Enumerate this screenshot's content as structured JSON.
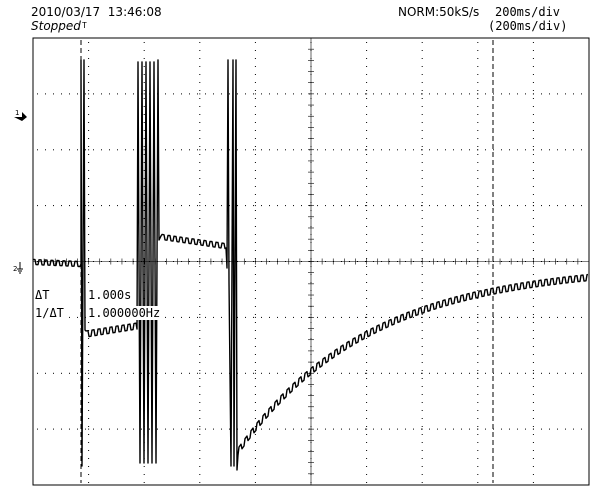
{
  "header": {
    "datetime": "2010/03/17  13:46:08",
    "status": "Stopped",
    "trigger_marker": "T",
    "acquisition_mode": "NORM:50kS/s",
    "time_div": "200ms/div",
    "zoom_time_div": "(200ms/div)"
  },
  "channels": {
    "ch1_marker": "1",
    "ch2_marker": "2"
  },
  "measurements": {
    "delta_t_label": "ΔT",
    "delta_t_value": "1.000s",
    "inv_delta_t_label": "1/ΔT",
    "inv_delta_t_value": "1.000000Hz"
  },
  "grid": {
    "divisions_x": 10,
    "divisions_y": 8
  },
  "colors": {
    "trace": "#000000",
    "grid": "#000000",
    "background": "#ffffff"
  }
}
